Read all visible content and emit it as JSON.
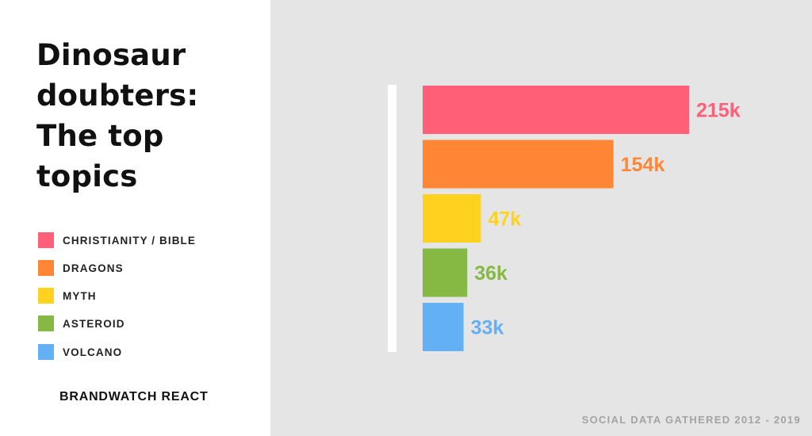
{
  "title_lines": [
    "Dinosaur",
    "doubters:",
    "The top",
    "topics"
  ],
  "brand": "BRANDWATCH REACT",
  "footer": "SOCIAL DATA GATHERED 2012 - 2019",
  "legend": [
    {
      "label": "CHRISTIANITY / BIBLE",
      "color": "#ff5f77"
    },
    {
      "label": "DRAGONS",
      "color": "#ff8635"
    },
    {
      "label": "MYTH",
      "color": "#ffd21f"
    },
    {
      "label": "ASTEROID",
      "color": "#85b944"
    },
    {
      "label": "VOLCANO",
      "color": "#63b0f4"
    }
  ],
  "chart_data": {
    "type": "bar",
    "orientation": "horizontal",
    "categories": [
      "CHRISTIANITY / BIBLE",
      "DRAGONS",
      "MYTH",
      "ASTEROID",
      "VOLCANO"
    ],
    "values": [
      215000,
      154000,
      47000,
      36000,
      33000
    ],
    "value_labels": [
      "215k",
      "154k",
      "47k",
      "36k",
      "33k"
    ],
    "colors": [
      "#ff5f77",
      "#ff8635",
      "#ffd21f",
      "#85b944",
      "#63b0f4"
    ],
    "title": "Dinosaur doubters: The top topics",
    "xlabel": "",
    "ylabel": "",
    "grid": false,
    "legend_position": "left"
  }
}
